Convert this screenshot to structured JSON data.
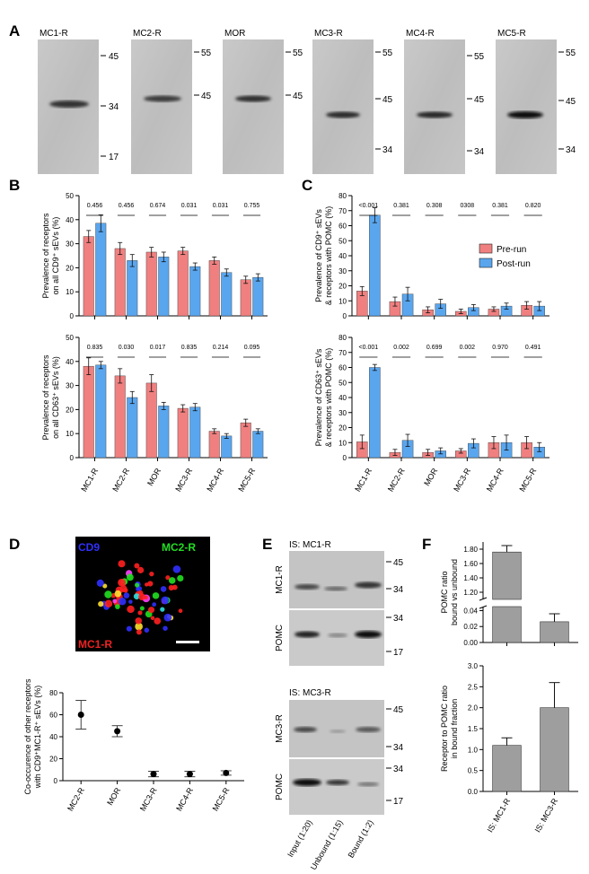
{
  "panel_letters": {
    "A": "A",
    "B": "B",
    "C": "C",
    "D": "D",
    "E": "E",
    "F": "F"
  },
  "panelA": {
    "blots": [
      {
        "name": "MC1-R",
        "markers": [
          "45",
          "34",
          "17"
        ]
      },
      {
        "name": "MC2-R",
        "markers": [
          "55",
          "45"
        ]
      },
      {
        "name": "MOR",
        "markers": [
          "55",
          "45"
        ]
      },
      {
        "name": "MC3-R",
        "markers": [
          "55",
          "45",
          "34"
        ]
      },
      {
        "name": "MC4-R",
        "markers": [
          "55",
          "45",
          "34"
        ]
      },
      {
        "name": "MC5-R",
        "markers": [
          "55",
          "45",
          "34"
        ]
      }
    ]
  },
  "legend": {
    "pre": "Pre-run",
    "post": "Post-run",
    "pre_color": "#f08080",
    "post_color": "#5aa6ee"
  },
  "chart_data": [
    {
      "id": "B1",
      "type": "bar",
      "ylabel_lines": [
        "Prevalence of receptors",
        "on all CD9⁺ sEVs (%)"
      ],
      "ylim": [
        0,
        50
      ],
      "ticks": [
        0,
        10,
        20,
        30,
        40,
        50
      ],
      "categories": [
        "MC1-R",
        "MC2-R",
        "MOR",
        "MC3-R",
        "MC4-R",
        "MC5-R"
      ],
      "series": [
        {
          "name": "Pre-run",
          "values": [
            33,
            28,
            26.5,
            27,
            23,
            15
          ],
          "errors": [
            2.5,
            2.5,
            2,
            1.5,
            1.5,
            1.5
          ]
        },
        {
          "name": "Post-run",
          "values": [
            38.5,
            23,
            24.5,
            20.5,
            18,
            16
          ],
          "errors": [
            3.5,
            2.5,
            2,
            1.5,
            1.5,
            1.5
          ]
        }
      ],
      "pvalues": [
        "0.456",
        "0.456",
        "0.674",
        "0.031",
        "0.031",
        "0.755"
      ]
    },
    {
      "id": "B2",
      "type": "bar",
      "ylabel_lines": [
        "Prevalence of receptors",
        "on all CD63⁺ sEVs (%)"
      ],
      "ylim": [
        0,
        50
      ],
      "ticks": [
        0,
        10,
        20,
        30,
        40,
        50
      ],
      "categories": [
        "MC1-R",
        "MC2-R",
        "MOR",
        "MC3-R",
        "MC4-R",
        "MC5-R"
      ],
      "series": [
        {
          "name": "Pre-run",
          "values": [
            38,
            34,
            31,
            20.5,
            11,
            14.5
          ],
          "errors": [
            3.5,
            3,
            3.5,
            1.5,
            1,
            1.5
          ]
        },
        {
          "name": "Post-run",
          "values": [
            38.5,
            25,
            21.5,
            21,
            9,
            11
          ],
          "errors": [
            1.5,
            2.5,
            1.5,
            1.5,
            1,
            1
          ]
        }
      ],
      "pvalues": [
        "0.835",
        "0.030",
        "0.017",
        "0.835",
        "0.214",
        "0.095"
      ]
    },
    {
      "id": "C1",
      "type": "bar",
      "ylabel_lines": [
        "Prevalence of CD9⁺ sEVs",
        "& receptors with POMC (%)"
      ],
      "ylim": [
        0,
        80
      ],
      "ticks": [
        0,
        10,
        20,
        30,
        40,
        50,
        60,
        70,
        80
      ],
      "categories": [
        "MC1-R",
        "MC2-R",
        "MOR",
        "MC3-R",
        "MC4-R",
        "MC5-R"
      ],
      "series": [
        {
          "name": "Pre-run",
          "values": [
            16.5,
            9.5,
            4,
            3,
            4.5,
            7
          ],
          "errors": [
            3,
            3,
            2,
            1.5,
            1.5,
            2.5
          ]
        },
        {
          "name": "Post-run",
          "values": [
            67,
            14.5,
            8,
            5.5,
            6.5,
            6.5
          ],
          "errors": [
            5,
            4.5,
            3,
            2,
            2,
            3
          ]
        }
      ],
      "pvalues": [
        "<0.001",
        "0.381",
        "0.308",
        "0308",
        "0.381",
        "0.820"
      ]
    },
    {
      "id": "C2",
      "type": "bar",
      "ylabel_lines": [
        "Prevalence of CD63⁺ sEVs",
        "& receptors with POMC (%)"
      ],
      "ylim": [
        0,
        80
      ],
      "ticks": [
        0,
        10,
        20,
        30,
        40,
        50,
        60,
        70,
        80
      ],
      "categories": [
        "MC1-R",
        "MC2-R",
        "MOR",
        "MC3-R",
        "MC4-R",
        "MC5-R"
      ],
      "series": [
        {
          "name": "Pre-run",
          "values": [
            10.5,
            3.5,
            3.5,
            4.5,
            10,
            10
          ],
          "errors": [
            4.5,
            2,
            2,
            1.5,
            4,
            4
          ]
        },
        {
          "name": "Post-run",
          "values": [
            60,
            11.5,
            4.5,
            9.5,
            10,
            7
          ],
          "errors": [
            2,
            4,
            2,
            3,
            5,
            3
          ]
        }
      ],
      "pvalues": [
        "<0.001",
        "0.002",
        "0.699",
        "0.002",
        "0.970",
        "0.491"
      ]
    },
    {
      "id": "D",
      "type": "scatter",
      "ylabel_lines": [
        "Co-occurence of other receptors",
        "with CD9⁺MC1-R⁺ sEVs (%)"
      ],
      "ylim": [
        0,
        80
      ],
      "ticks": [
        0,
        20,
        40,
        60,
        80
      ],
      "categories": [
        "MC2-R",
        "MOR",
        "MC3-R",
        "MC4-R",
        "MC5-R"
      ],
      "values": [
        60,
        45,
        6,
        6,
        7
      ],
      "errors": [
        13,
        5,
        2.5,
        2.5,
        2
      ]
    },
    {
      "id": "F1",
      "type": "bar",
      "ylabel_lines": [
        "POMC ratio",
        "bound vs unbound"
      ],
      "upper_ticks": [
        "1.20",
        "1.40",
        "1.60",
        "1.80"
      ],
      "lower_ticks": [
        "0.00",
        "0.02",
        "0.04"
      ],
      "categories": [
        "IS: MC1-R",
        "IS: MC3-R"
      ],
      "values": [
        1.76,
        0.026
      ],
      "errors": [
        0.09,
        0.01
      ]
    },
    {
      "id": "F2",
      "type": "bar",
      "ylabel_lines": [
        "Receptor to POMC ratio",
        "in bound fraction"
      ],
      "ylim": [
        0,
        3.0
      ],
      "ticks": [
        "0.0",
        "0.5",
        "1.0",
        "1.5",
        "2.0",
        "2.5",
        "3.0"
      ],
      "categories": [
        "IS: MC1-R",
        "IS: MC3-R"
      ],
      "values": [
        1.1,
        2.0
      ],
      "errors": [
        0.18,
        0.6
      ]
    }
  ],
  "panelD_image": {
    "label_cd9": "CD9",
    "label_mc2r": "MC2-R",
    "label_mc1r": "MC1-R"
  },
  "panelE": {
    "top_title": "IS: MC1-R",
    "bottom_title": "IS: MC3-R",
    "row_labels": [
      "MC1-R",
      "POMC",
      "MC3-R",
      "POMC"
    ],
    "markers": [
      [
        "45",
        "34"
      ],
      [
        "34",
        "17"
      ],
      [
        "45",
        "34"
      ],
      [
        "34",
        "17"
      ]
    ],
    "lanes": [
      "Input (1:20)",
      "Unbound (1:15)",
      "Bound (1:2)"
    ]
  }
}
